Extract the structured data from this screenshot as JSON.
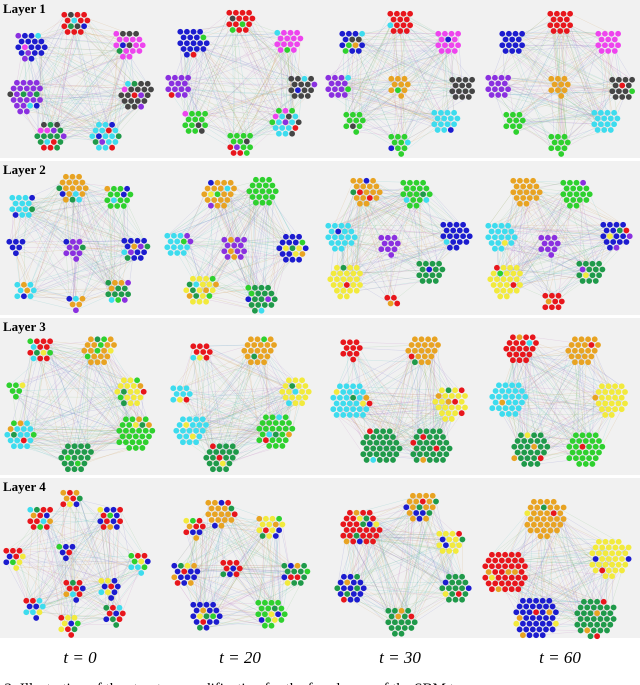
{
  "figure": {
    "layers": [
      "Layer 1",
      "Layer 2",
      "Layer 3",
      "Layer 4"
    ],
    "times": [
      "t = 0",
      "t = 20",
      "t = 30",
      "t = 60"
    ],
    "caption": "e 3: Illustration of the structure modification for the four layers of the SBM te"
  }
}
